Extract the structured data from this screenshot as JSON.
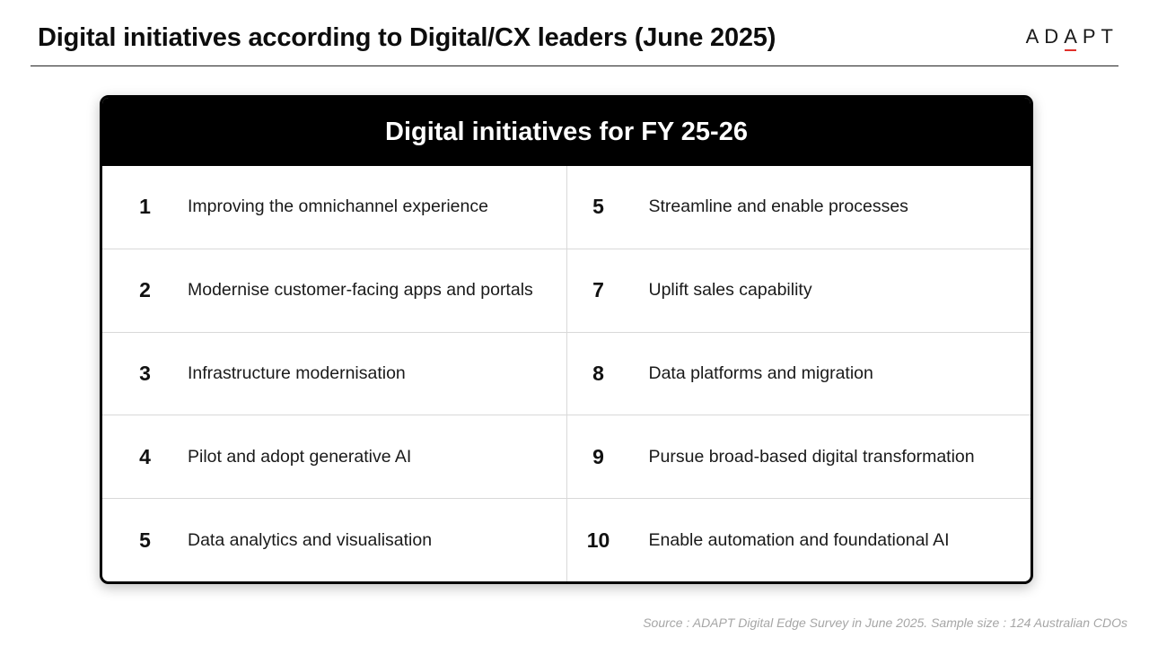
{
  "header": {
    "title": "Digital initiatives according to Digital/CX leaders (June 2025)",
    "logo_text_1": "AD",
    "logo_text_2": "A",
    "logo_text_3": "PT"
  },
  "card": {
    "title": "Digital initiatives for FY 25-26",
    "left_items": [
      {
        "rank": "1",
        "label": "Improving the omnichannel experience"
      },
      {
        "rank": "2",
        "label": "Modernise customer-facing apps and portals"
      },
      {
        "rank": "3",
        "label": "Infrastructure modernisation"
      },
      {
        "rank": "4",
        "label": "Pilot and adopt generative AI"
      },
      {
        "rank": "5",
        "label": "Data analytics and visualisation"
      }
    ],
    "right_items": [
      {
        "rank": "5",
        "label": "Streamline and enable processes"
      },
      {
        "rank": "7",
        "label": "Uplift sales capability"
      },
      {
        "rank": "8",
        "label": "Data platforms and migration"
      },
      {
        "rank": "9",
        "label": "Pursue broad-based digital transformation"
      },
      {
        "rank": "10",
        "label": "Enable automation and foundational AI"
      }
    ]
  },
  "footer": {
    "source": "Source : ADAPT Digital Edge Survey in June 2025. Sample size : 124 Australian CDOs"
  },
  "colors": {
    "accent": "#e0302a",
    "header_bg": "#000000"
  }
}
